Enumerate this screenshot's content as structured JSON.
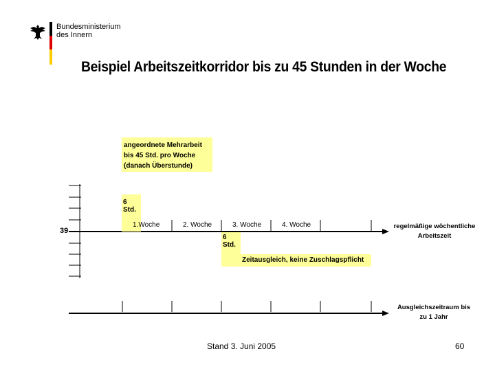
{
  "header": {
    "ministry_line1": "Bundesministerium",
    "ministry_line2": "des Innern",
    "logo_icon": "federal-eagle-icon",
    "flag_colors": [
      "#000000",
      "#dd0000",
      "#ffcc00"
    ]
  },
  "title": "Beispiel Arbeitszeitkorridor bis zu 45 Stunden in der Woche",
  "diagram": {
    "mehrarbeit_box": {
      "line1": "angeordnete Mehrarbeit",
      "line2": "bis 45 Std. pro Woche",
      "line3": "(danach Überstunde)"
    },
    "plus_hours": "6 Std.",
    "minus_hours": "6 Std.",
    "ausgleich_text": "Zeitausgleich, keine Zuschlagspflicht",
    "baseline_label": "39",
    "weeks": [
      "1.Woche",
      "2. Woche",
      "3. Woche",
      "4. Woche"
    ],
    "regular_label_line1": "regelmäßige wöchentliche",
    "regular_label_line2": "Arbeitszeit",
    "period_label_line1": "Ausgleichszeitraum bis",
    "period_label_line2": "zu 1 Jahr",
    "highlight_color": "#ffff99"
  },
  "footer": {
    "date": "Stand 3. Juni 2005",
    "page": "60"
  }
}
